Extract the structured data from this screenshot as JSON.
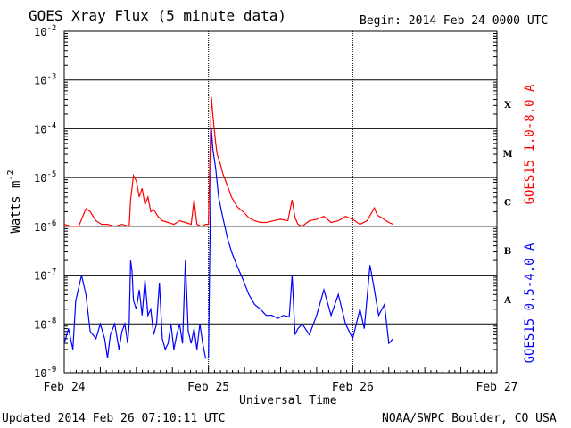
{
  "header": {
    "title": "GOES Xray Flux (5 minute data)",
    "begin": "Begin:  2014 Feb 24 0000 UTC"
  },
  "footer": {
    "updated": "Updated 2014 Feb 26 07:10:11 UTC",
    "credit": "NOAA/SWPC Boulder, CO USA"
  },
  "chart_data": {
    "type": "line",
    "title": "GOES Xray Flux (5 minute data)",
    "xlabel": "Universal Time",
    "ylabel": "Watts m",
    "ylabel_superscript": "-2",
    "yscale": "log",
    "ylim": [
      1e-09,
      0.01
    ],
    "xlim_days": [
      0,
      3
    ],
    "x_ticks": [
      "Feb 24",
      "Feb 25",
      "Feb 26",
      "Feb 27"
    ],
    "y_ticks": [
      {
        "base": "10",
        "exp": "-9",
        "value": 1e-09
      },
      {
        "base": "10",
        "exp": "-8",
        "value": 1e-08
      },
      {
        "base": "10",
        "exp": "-7",
        "value": 1e-07
      },
      {
        "base": "10",
        "exp": "-6",
        "value": 1e-06
      },
      {
        "base": "10",
        "exp": "-5",
        "value": 1e-05
      },
      {
        "base": "10",
        "exp": "-4",
        "value": 0.0001
      },
      {
        "base": "10",
        "exp": "-3",
        "value": 0.001
      },
      {
        "base": "10",
        "exp": "-2",
        "value": 0.01
      }
    ],
    "flare_classes": [
      {
        "label": "A",
        "value": 3.16e-08
      },
      {
        "label": "B",
        "value": 3.16e-07
      },
      {
        "label": "C",
        "value": 3.16e-06
      },
      {
        "label": "M",
        "value": 3.16e-05
      },
      {
        "label": "X",
        "value": 0.000316
      }
    ],
    "series": [
      {
        "name": "GOES15 1.0-8.0 A",
        "color": "#ff0000",
        "x": [
          0.0,
          0.05,
          0.1,
          0.15,
          0.18,
          0.22,
          0.26,
          0.3,
          0.35,
          0.4,
          0.45,
          0.46,
          0.48,
          0.5,
          0.52,
          0.54,
          0.56,
          0.58,
          0.6,
          0.62,
          0.65,
          0.68,
          0.72,
          0.76,
          0.8,
          0.84,
          0.88,
          0.9,
          0.92,
          0.95,
          0.98,
          1.0,
          1.02,
          1.03,
          1.04,
          1.05,
          1.06,
          1.08,
          1.1,
          1.13,
          1.16,
          1.2,
          1.24,
          1.28,
          1.32,
          1.36,
          1.4,
          1.45,
          1.5,
          1.55,
          1.58,
          1.6,
          1.62,
          1.65,
          1.7,
          1.75,
          1.8,
          1.85,
          1.9,
          1.95,
          2.0,
          2.05,
          2.1,
          2.15,
          2.17,
          2.2,
          2.25,
          2.28
        ],
        "y": [
          1.1e-06,
          1e-06,
          1e-06,
          2.3e-06,
          2e-06,
          1.3e-06,
          1.1e-06,
          1.1e-06,
          1e-06,
          1.1e-06,
          1e-06,
          3.5e-06,
          1.1e-05,
          8.5e-06,
          4e-06,
          6e-06,
          2.8e-06,
          4e-06,
          2e-06,
          2.2e-06,
          1.6e-06,
          1.3e-06,
          1.2e-06,
          1.1e-06,
          1.3e-06,
          1.2e-06,
          1.1e-06,
          3.5e-06,
          1.1e-06,
          1e-06,
          1.1e-06,
          1.1e-06,
          0.00045,
          0.0002,
          0.0001,
          5e-05,
          3e-05,
          2e-05,
          1.2e-05,
          7e-06,
          4e-06,
          2.5e-06,
          2e-06,
          1.5e-06,
          1.3e-06,
          1.2e-06,
          1.2e-06,
          1.3e-06,
          1.4e-06,
          1.3e-06,
          3.5e-06,
          1.5e-06,
          1.1e-06,
          1e-06,
          1.3e-06,
          1.4e-06,
          1.6e-06,
          1.2e-06,
          1.3e-06,
          1.6e-06,
          1.4e-06,
          1.1e-06,
          1.3e-06,
          2.4e-06,
          1.7e-06,
          1.5e-06,
          1.2e-06,
          1.1e-06
        ]
      },
      {
        "name": "GOES15 0.5-4.0 A",
        "color": "#0000ff",
        "x": [
          0.0,
          0.03,
          0.06,
          0.08,
          0.12,
          0.15,
          0.18,
          0.22,
          0.25,
          0.28,
          0.3,
          0.32,
          0.35,
          0.38,
          0.4,
          0.42,
          0.44,
          0.45,
          0.46,
          0.47,
          0.48,
          0.5,
          0.52,
          0.54,
          0.56,
          0.58,
          0.6,
          0.62,
          0.64,
          0.66,
          0.68,
          0.7,
          0.72,
          0.74,
          0.76,
          0.78,
          0.8,
          0.82,
          0.84,
          0.86,
          0.88,
          0.9,
          0.92,
          0.94,
          0.96,
          0.98,
          1.0,
          1.02,
          1.03,
          1.05,
          1.07,
          1.1,
          1.13,
          1.16,
          1.2,
          1.24,
          1.28,
          1.32,
          1.36,
          1.4,
          1.44,
          1.48,
          1.52,
          1.56,
          1.58,
          1.6,
          1.62,
          1.65,
          1.7,
          1.75,
          1.8,
          1.85,
          1.9,
          1.95,
          2.0,
          2.05,
          2.08,
          2.12,
          2.15,
          2.18,
          2.22,
          2.25,
          2.28
        ],
        "y": [
          4e-09,
          8e-09,
          3e-09,
          3e-08,
          1e-07,
          4e-08,
          7e-09,
          5e-09,
          1e-08,
          5e-09,
          2e-09,
          6e-09,
          1e-08,
          3e-09,
          7e-09,
          1e-08,
          4e-09,
          1e-08,
          2e-07,
          1.2e-07,
          3e-08,
          2e-08,
          5e-08,
          1.5e-08,
          8e-08,
          1.5e-08,
          2e-08,
          6e-09,
          1e-08,
          7e-08,
          5e-09,
          3e-09,
          4e-09,
          1e-08,
          3e-09,
          6e-09,
          1e-08,
          4e-09,
          2e-07,
          7e-09,
          4e-09,
          8e-09,
          3e-09,
          1e-08,
          4e-09,
          2e-09,
          2e-09,
          0.0001,
          4e-05,
          1.5e-05,
          4e-06,
          1.5e-06,
          6e-07,
          3e-07,
          1.5e-07,
          8e-08,
          4e-08,
          2.5e-08,
          2e-08,
          1.5e-08,
          1.5e-08,
          1.3e-08,
          1.5e-08,
          1.4e-08,
          1e-07,
          6e-09,
          8e-09,
          1e-08,
          6e-09,
          1.5e-08,
          5e-08,
          1.5e-08,
          4e-08,
          1e-08,
          5e-09,
          2e-08,
          8e-09,
          1.6e-07,
          5e-08,
          1.5e-08,
          2.5e-08,
          4e-09,
          5e-09
        ]
      }
    ]
  }
}
